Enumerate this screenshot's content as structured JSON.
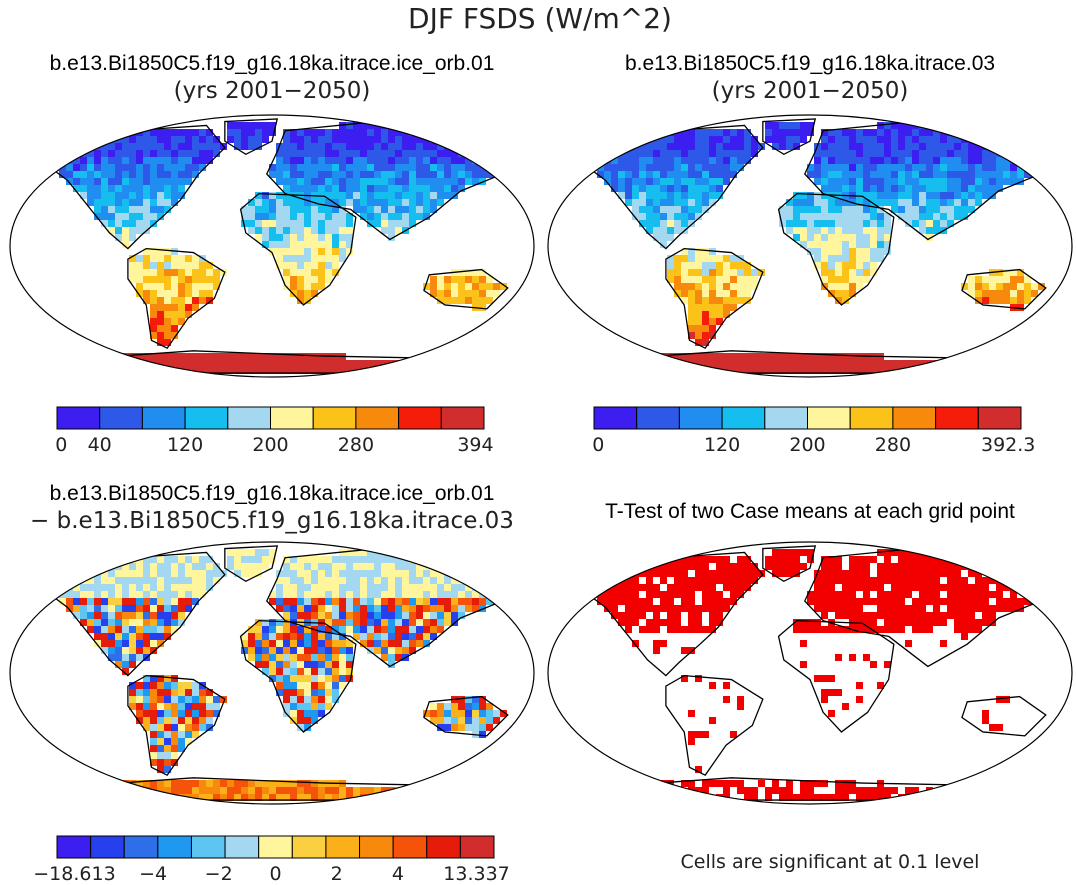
{
  "figure": {
    "title": "DJF FSDS (W/m^2)",
    "colors": {
      "land_ocean_bg": "#ffffff",
      "outline": "#000000"
    }
  },
  "chart_data": [
    {
      "type": "heatmap",
      "title_line1": "b.e13.Bi1850C5.f19_g16.18ka.itrace.ice_orb.01",
      "title_line2": "(yrs 2001−2050)",
      "variable": "FSDS",
      "units": "W/m^2",
      "season": "DJF",
      "colorbar": {
        "colors": [
          "#3c1ef0",
          "#2e58e8",
          "#1f8ef0",
          "#16bef0",
          "#a4d8f0",
          "#fff59c",
          "#fbc21a",
          "#f78a0c",
          "#f51c0a",
          "#d22d2d"
        ],
        "tick_labels": [
          "0",
          "40",
          "120",
          "200",
          "280",
          "394"
        ],
        "range": [
          0,
          394
        ]
      }
    },
    {
      "type": "heatmap",
      "title_line1": "b.e13.Bi1850C5.f19_g16.18ka.itrace.03",
      "title_line2": "(yrs 2001−2050)",
      "variable": "FSDS",
      "units": "W/m^2",
      "season": "DJF",
      "colorbar": {
        "colors": [
          "#3c1ef0",
          "#2e58e8",
          "#1f8ef0",
          "#16bef0",
          "#a4d8f0",
          "#fff59c",
          "#fbc21a",
          "#f78a0c",
          "#f51c0a",
          "#d22d2d"
        ],
        "tick_labels": [
          "0",
          "120",
          "200",
          "280",
          "392.3"
        ],
        "range": [
          0,
          392.3
        ]
      }
    },
    {
      "type": "heatmap",
      "title_line1": "b.e13.Bi1850C5.f19_g16.18ka.itrace.ice_orb.01",
      "title_line2": "− b.e13.Bi1850C5.f19_g16.18ka.itrace.03",
      "variable": "FSDS difference",
      "units": "W/m^2",
      "colorbar": {
        "colors": [
          "#3c1ef0",
          "#2740ee",
          "#2e6ee8",
          "#1f98f0",
          "#5ec4f0",
          "#a4d8f0",
          "#fff59c",
          "#fbd040",
          "#fbb01a",
          "#f78a0c",
          "#f5520a",
          "#e51c0a",
          "#d22d2d"
        ],
        "tick_labels": [
          "−18.613",
          "−4",
          "−2",
          "0",
          "2",
          "4",
          "13.337"
        ],
        "range": [
          -18.613,
          13.337
        ]
      }
    },
    {
      "type": "heatmap",
      "title_line1": "T-Test of two Case means at each grid point",
      "significance_color": "#f20000",
      "note": "Cells are significant at 0.1 level"
    }
  ]
}
